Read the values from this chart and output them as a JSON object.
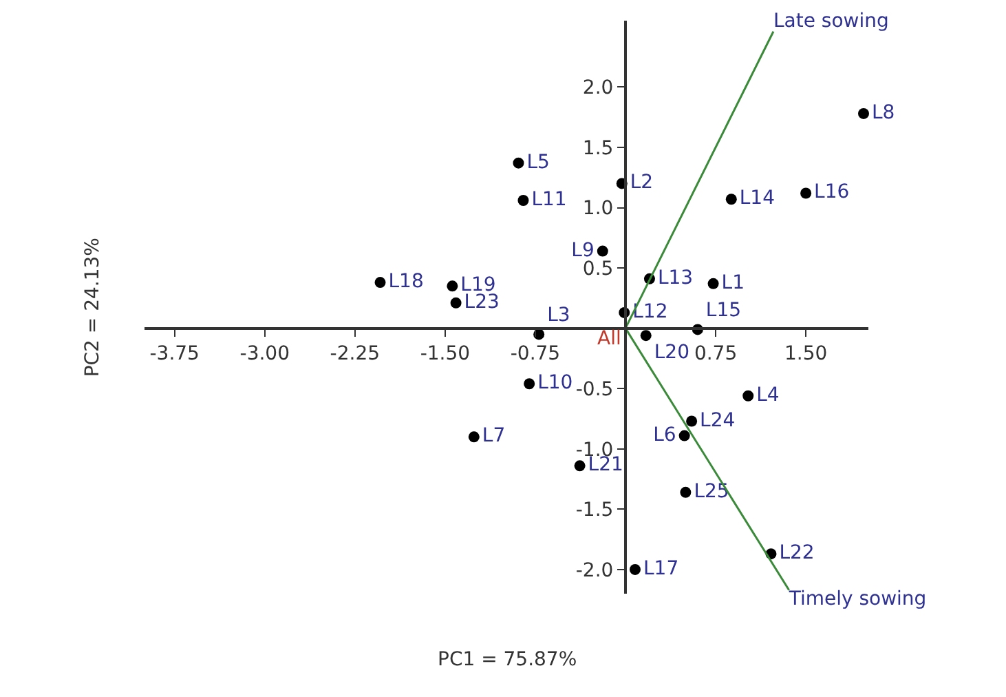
{
  "chart_data": {
    "type": "scatter",
    "xlabel": "PC1 = 75.87%",
    "ylabel": "PC2 = 24.13%",
    "xlim": [
      -4.0,
      2.02
    ],
    "ylim": [
      -2.2,
      2.55
    ],
    "xticks": [
      {
        "value": -3.75,
        "label": "-3.75"
      },
      {
        "value": -3.0,
        "label": "-3.00"
      },
      {
        "value": -2.25,
        "label": "-2.25"
      },
      {
        "value": -1.5,
        "label": "-1.50"
      },
      {
        "value": -0.75,
        "label": "-0.75"
      },
      {
        "value": 0.75,
        "label": "0.75"
      },
      {
        "value": 1.5,
        "label": "1.50"
      }
    ],
    "yticks": [
      {
        "value": 2,
        "label": "2.0"
      },
      {
        "value": 1.5,
        "label": "1.5"
      },
      {
        "value": 1,
        "label": "1.0"
      },
      {
        "value": 0.5,
        "label": "0.5"
      },
      {
        "value": -0.5,
        "label": "-0.5"
      },
      {
        "value": -1,
        "label": "-1.0"
      },
      {
        "value": -1.5,
        "label": "-1.5"
      },
      {
        "value": -2,
        "label": "-2.0"
      }
    ],
    "legend": false,
    "marker": "circle",
    "series": [
      {
        "color": "#000000",
        "x": [
          0.73,
          -0.03,
          -0.72,
          1.02,
          -0.89,
          0.49,
          -1.26,
          1.98,
          -0.19,
          -0.8,
          -0.85,
          -0.01,
          0.2,
          0.88,
          0.6,
          1.5,
          0.08,
          -2.04,
          -1.44,
          0.17,
          -0.38,
          1.21,
          -1.41,
          0.55,
          0.5
        ],
        "values": [
          0.37,
          1.2,
          -0.05,
          -0.56,
          1.37,
          -0.89,
          -0.9,
          1.78,
          0.64,
          -0.46,
          1.06,
          0.13,
          0.41,
          1.07,
          -0.01,
          1.12,
          -2.0,
          0.38,
          0.35,
          -0.06,
          -1.14,
          -1.87,
          0.21,
          -0.77,
          -1.36
        ],
        "value_labels": [
          "L1",
          "L2",
          "L3",
          "L4",
          "L5",
          "L6",
          "L7",
          "L8",
          "L9",
          "L10",
          "L11",
          "L12",
          "L13",
          "L14",
          "L15",
          "L16",
          "L17",
          "L18",
          "L19",
          "L20",
          "L21",
          "L22",
          "L23",
          "L24",
          "L25"
        ]
      },
      {
        "type": "line",
        "name": "Late sowing",
        "color": "#3a8a3a",
        "marker": "none",
        "x": [
          0,
          1.23
        ],
        "values": [
          0,
          2.46
        ]
      },
      {
        "type": "line",
        "name": "Timely sowing",
        "color": "#3a8a3a",
        "marker": "none",
        "x": [
          0,
          1.36
        ],
        "values": [
          0,
          -2.17
        ]
      }
    ],
    "annotations": [
      {
        "text": "All",
        "x": 0.05,
        "y": 0.05
      }
    ]
  }
}
